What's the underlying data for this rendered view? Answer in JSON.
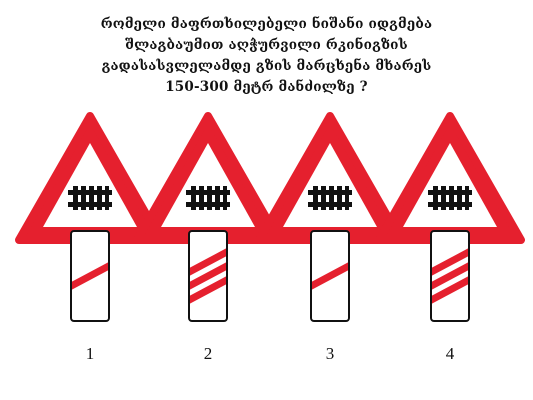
{
  "question": {
    "lines": [
      "რომელი მაფრთხილებელი ნიშანი იდგმება",
      "შლაგბაუმით აღჭურვილი რკინიგზის",
      "გადასასვლელამდე გზის მარცხენა მხარეს",
      "150-300 მეტრ მანძილზე ?"
    ]
  },
  "options": [
    {
      "number": "1",
      "stripes": 1
    },
    {
      "number": "2",
      "stripes": 3
    },
    {
      "number": "3",
      "stripes": 1
    },
    {
      "number": "4",
      "stripes": 3
    }
  ],
  "colors": {
    "red": "#e5202e",
    "black": "#111111",
    "white": "#ffffff"
  },
  "icons": [
    "warning-triangle-gate-icon",
    "countdown-marker-icon"
  ]
}
